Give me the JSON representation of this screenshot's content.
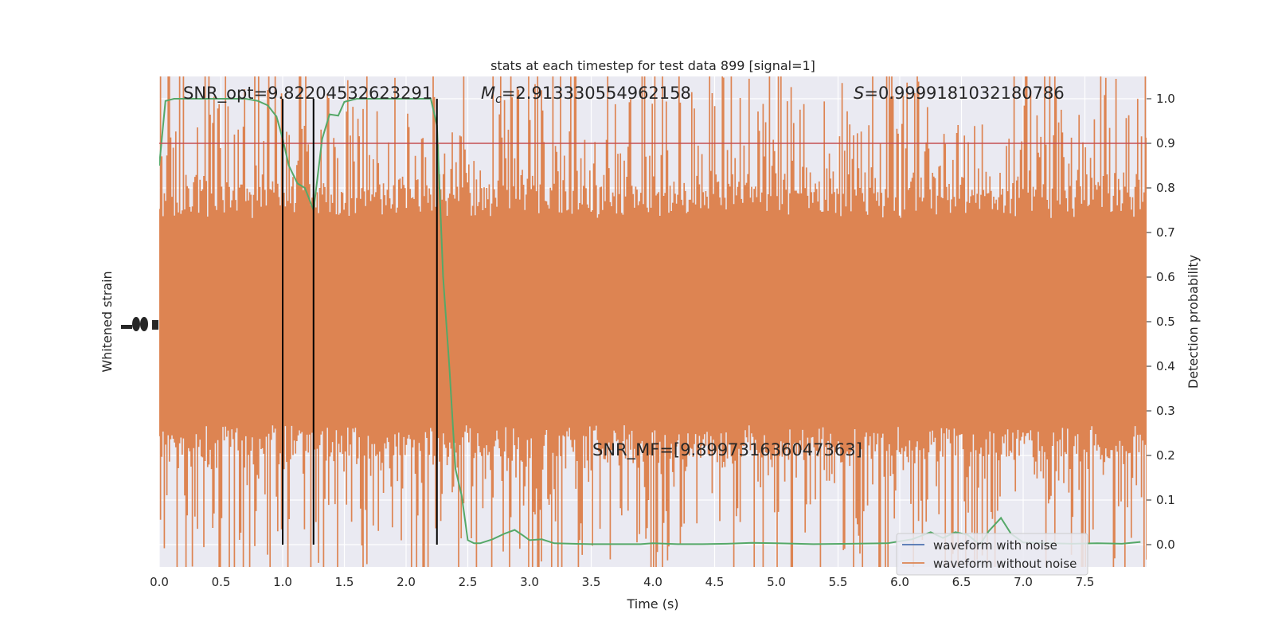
{
  "chart_data": {
    "type": "line",
    "title": "stats at each timestep for test data 899 [signal=1]",
    "xlabel": "Time (s)",
    "ylabel_left": "Whitened strain",
    "ylabel_right": "Detection probability",
    "xlim": [
      0.0,
      8.0
    ],
    "ylim_right": [
      -0.05,
      1.05
    ],
    "x_ticks": [
      "0.0",
      "0.5",
      "1.0",
      "1.5",
      "2.0",
      "2.5",
      "3.0",
      "3.5",
      "4.0",
      "4.5",
      "5.0",
      "5.5",
      "6.0",
      "6.5",
      "7.0",
      "7.5"
    ],
    "y_ticks_right": [
      "0.0",
      "0.1",
      "0.2",
      "0.3",
      "0.4",
      "0.5",
      "0.6",
      "0.7",
      "0.8",
      "0.9",
      "1.0"
    ],
    "grid": true,
    "legend_position": "lower right",
    "annotations": {
      "snr_opt": "SNR_opt=9.82204532623291",
      "mc_symbol": "M",
      "mc_sub": "c",
      "mc_value": "=2.913330554962158",
      "s_symbol": "S",
      "s_value": "=0.9999181032180786",
      "snr_mf": "SNR_MF=[9.899731636047363]"
    },
    "series": [
      {
        "name": "waveform with noise",
        "color": "#4c72b0"
      },
      {
        "name": "waveform without noise",
        "color": "#dd8452"
      },
      {
        "color": "#55a868",
        "x": [
          0.0,
          0.05,
          0.12,
          0.25,
          0.4,
          0.55,
          0.7,
          0.8,
          0.88,
          0.95,
          1.0,
          1.05,
          1.12,
          1.18,
          1.25,
          1.32,
          1.38,
          1.45,
          1.5,
          1.6,
          1.75,
          1.9,
          2.05,
          2.2,
          2.25,
          2.3,
          2.35,
          2.4,
          2.45,
          2.5,
          2.55,
          2.6,
          2.7,
          2.8,
          2.88,
          2.95,
          3.0,
          3.1,
          3.2,
          3.35,
          3.5,
          3.7,
          3.9,
          4.0,
          4.2,
          4.4,
          4.6,
          4.8,
          5.0,
          5.3,
          5.6,
          5.9,
          6.1,
          6.25,
          6.35,
          6.45,
          6.55,
          6.65,
          6.72,
          6.82,
          6.9,
          7.0,
          7.2,
          7.4,
          7.6,
          7.8,
          7.95
        ],
        "y": [
          0.85,
          0.995,
          1.0,
          1.0,
          1.0,
          1.0,
          1.0,
          0.995,
          0.985,
          0.96,
          0.91,
          0.85,
          0.81,
          0.8,
          0.75,
          0.91,
          0.965,
          0.962,
          0.993,
          1.0,
          1.0,
          1.0,
          1.0,
          1.0,
          0.94,
          0.6,
          0.4,
          0.17,
          0.11,
          0.01,
          0.003,
          0.003,
          0.012,
          0.025,
          0.033,
          0.02,
          0.01,
          0.012,
          0.003,
          0.002,
          0.001,
          0.001,
          0.001,
          0.003,
          0.001,
          0.001,
          0.002,
          0.004,
          0.003,
          0.001,
          0.002,
          0.003,
          0.012,
          0.028,
          0.015,
          0.028,
          0.022,
          0.0,
          0.03,
          0.06,
          0.025,
          0.005,
          0.003,
          0.002,
          0.003,
          0.002,
          0.006
        ]
      },
      {
        "color": "#c44e52",
        "x": [
          0.0,
          8.0
        ],
        "y": [
          0.9,
          0.9
        ]
      }
    ],
    "vlines": {
      "x": [
        1.0,
        1.25,
        2.25
      ],
      "color": "#000000"
    }
  }
}
